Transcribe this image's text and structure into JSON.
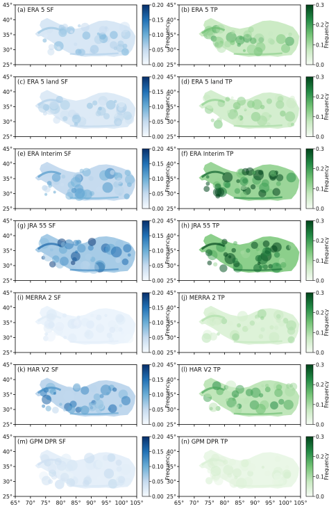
{
  "colorbar_label": "Frequency",
  "x_ticks": [
    "65°",
    "70°",
    "75°",
    "80°",
    "85°",
    "90°",
    "95°",
    "100°",
    "105°"
  ],
  "y_ticks": [
    "25°",
    "30°",
    "35°",
    "40°",
    "45°"
  ],
  "sf_ticks": [
    "0.00",
    "0.05",
    "0.10",
    "0.15",
    "0.20"
  ],
  "tp_ticks": [
    "0.0",
    "0.1",
    "0.2",
    "0.3"
  ],
  "colors": {
    "sf_cmap": "Blues",
    "tp_cmap": "Greens",
    "sf_dark": "#08306b",
    "tp_dark": "#00441b"
  },
  "panels": [
    {
      "label": "(a) ERA 5 SF",
      "var": "SF",
      "intensity": 0.35
    },
    {
      "label": "(b) ERA 5 TP",
      "var": "TP",
      "intensity": 0.5
    },
    {
      "label": "(c) ERA 5 land SF",
      "var": "SF",
      "intensity": 0.3
    },
    {
      "label": "(d) ERA 5 land TP",
      "var": "TP",
      "intensity": 0.4
    },
    {
      "label": "(e) ERA Interim SF",
      "var": "SF",
      "intensity": 0.55
    },
    {
      "label": "(f) ERA Interim TP",
      "var": "TP",
      "intensity": 0.85
    },
    {
      "label": "(g) JRA 55 SF",
      "var": "SF",
      "intensity": 0.75
    },
    {
      "label": "(h) JRA 55 TP",
      "var": "TP",
      "intensity": 0.95
    },
    {
      "label": "(i) MERRA 2 SF",
      "var": "SF",
      "intensity": 0.12
    },
    {
      "label": "(j) MERRA 2 TP",
      "var": "TP",
      "intensity": 0.3
    },
    {
      "label": "(k) HAR V2 SF",
      "var": "SF",
      "intensity": 0.6
    },
    {
      "label": "(l) HAR V2 TP",
      "var": "TP",
      "intensity": 0.6
    },
    {
      "label": "(m) GPM DPR SF",
      "var": "SF",
      "intensity": 0.2
    },
    {
      "label": "(n) GPM DPR TP",
      "var": "TP",
      "intensity": 0.15
    }
  ]
}
